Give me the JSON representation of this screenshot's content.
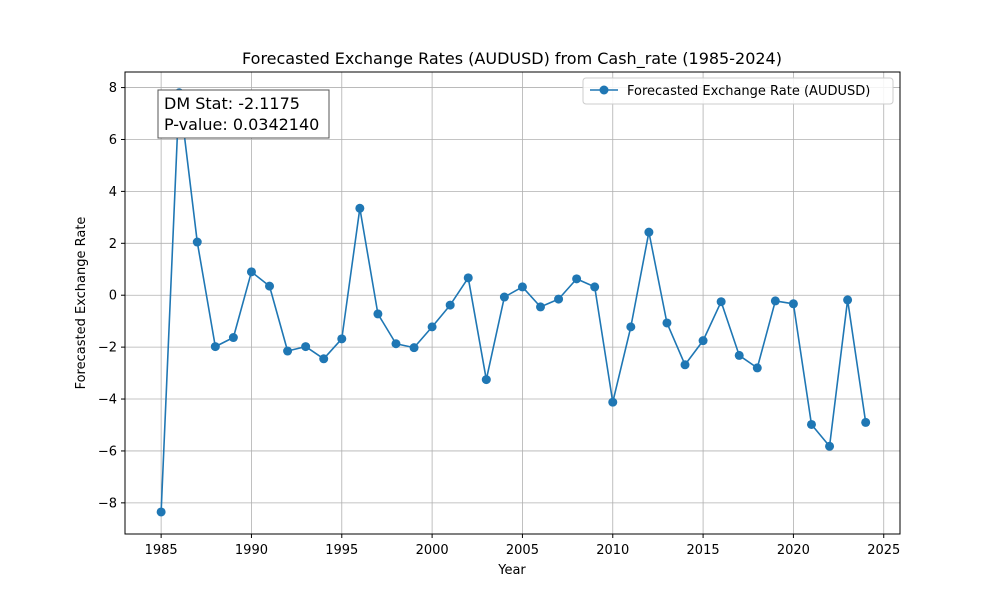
{
  "colors": {
    "series": "#1f77b4",
    "grid": "#b0b0b0",
    "axis": "#000000",
    "legend_border": "#cccccc",
    "annotation_border": "#555555",
    "background": "#ffffff"
  },
  "chart_data": {
    "type": "line",
    "title": "Forecasted Exchange Rates (AUDUSD) from Cash_rate (1985-2024)",
    "xlabel": "Year",
    "ylabel": "Forecasted Exchange Rate",
    "xlim": [
      1983,
      2025.9
    ],
    "ylim": [
      -9.2,
      8.6
    ],
    "xticks": [
      1985,
      1990,
      1995,
      2000,
      2005,
      2010,
      2015,
      2020,
      2025
    ],
    "yticks": [
      -8,
      -6,
      -4,
      -2,
      0,
      2,
      4,
      6,
      8
    ],
    "xtick_labels": [
      "1985",
      "1990",
      "1995",
      "2000",
      "2005",
      "2010",
      "2015",
      "2020",
      "2025"
    ],
    "ytick_labels": [
      "−8",
      "−6",
      "−4",
      "−2",
      "0",
      "2",
      "4",
      "6",
      "8"
    ],
    "grid": true,
    "legend_position": "top-right",
    "series": [
      {
        "name": "Forecasted Exchange Rate (AUDUSD)",
        "marker": "circle",
        "x": [
          1985,
          1986,
          1987,
          1988,
          1989,
          1990,
          1991,
          1992,
          1993,
          1994,
          1995,
          1996,
          1997,
          1998,
          1999,
          2000,
          2001,
          2002,
          2003,
          2004,
          2005,
          2006,
          2007,
          2008,
          2009,
          2010,
          2011,
          2012,
          2013,
          2014,
          2015,
          2016,
          2017,
          2018,
          2019,
          2020,
          2021,
          2022,
          2023,
          2024
        ],
        "y": [
          -8.35,
          7.8,
          2.05,
          -1.98,
          -1.63,
          0.9,
          0.35,
          -2.15,
          -1.98,
          -2.45,
          -1.68,
          3.35,
          -0.72,
          -1.87,
          -2.02,
          -1.22,
          -0.38,
          0.67,
          -3.25,
          -0.07,
          0.32,
          -0.45,
          -0.15,
          0.63,
          0.32,
          -4.12,
          -1.22,
          2.43,
          -1.07,
          -2.68,
          -1.75,
          -0.25,
          -2.32,
          -2.8,
          -0.22,
          -0.33,
          -4.98,
          -5.82,
          -0.18,
          -4.9
        ]
      }
    ],
    "annotation": {
      "lines": [
        "DM Stat: -2.1175",
        "P-value: 0.0342140"
      ],
      "position": "top-left"
    }
  }
}
